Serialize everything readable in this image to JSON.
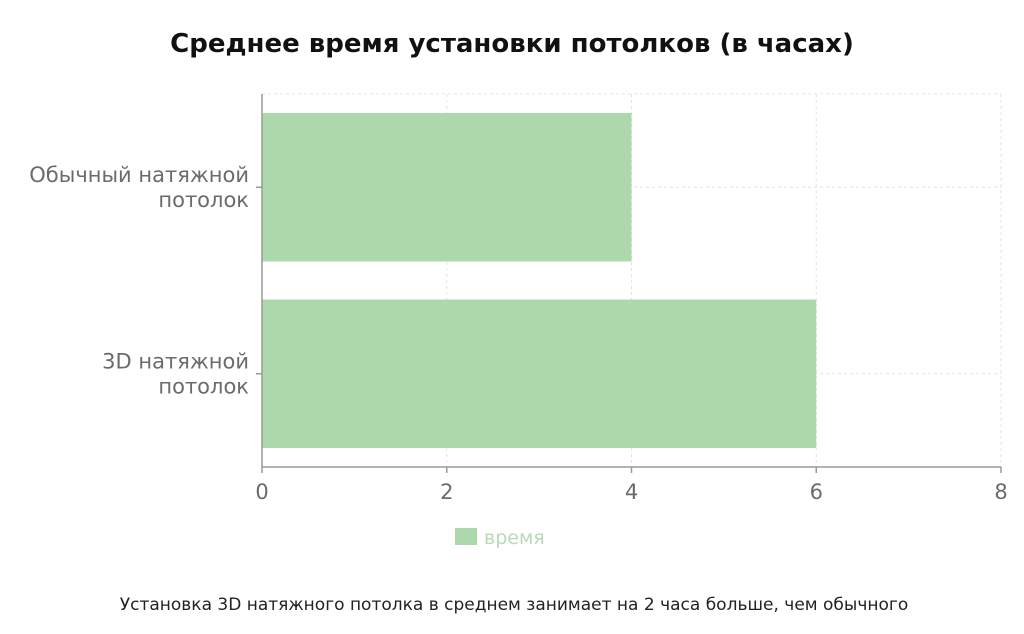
{
  "chart_data": {
    "type": "bar",
    "orientation": "horizontal",
    "title": "Среднее время установки потолков (в часах)",
    "categories": [
      [
        "Обычный натяжной",
        "потолок"
      ],
      [
        "3D натяжной",
        "потолок"
      ]
    ],
    "series": [
      {
        "name": "время",
        "values": [
          4,
          6
        ],
        "color": "#add8ab"
      }
    ],
    "xlim": [
      0,
      8
    ],
    "xticks": [
      0,
      2,
      4,
      6,
      8
    ],
    "grid": true,
    "legend_position": "bottom-center"
  },
  "caption": "Установка 3D натяжного потолка в среднем занимает на 2 часа больше, чем обычного",
  "colors": {
    "bar": "#add8ab",
    "legend_text": "#b9d9b9",
    "axis": "#9a9a9a",
    "grid": "#e3e3e3"
  }
}
